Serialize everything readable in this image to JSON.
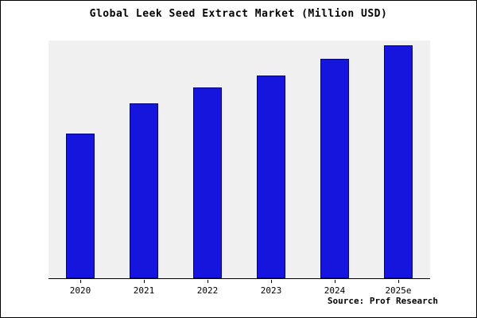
{
  "chart_data": {
    "type": "bar",
    "title": "Global Leek Seed Extract Market (Million USD)",
    "categories": [
      "2020",
      "2021",
      "2022",
      "2023",
      "2024",
      "2025e"
    ],
    "values": [
      62,
      75,
      82,
      87,
      94,
      100
    ],
    "xlabel": "",
    "ylabel": "",
    "ylim": [
      0,
      102
    ],
    "grid": false,
    "legend_position": "none",
    "bar_color": "#1515dd",
    "bar_edge_color": "#000080",
    "plot_background": "#f0f0f0",
    "frame_border_color": "#000000"
  },
  "source": {
    "label": "Source: Prof Research"
  }
}
